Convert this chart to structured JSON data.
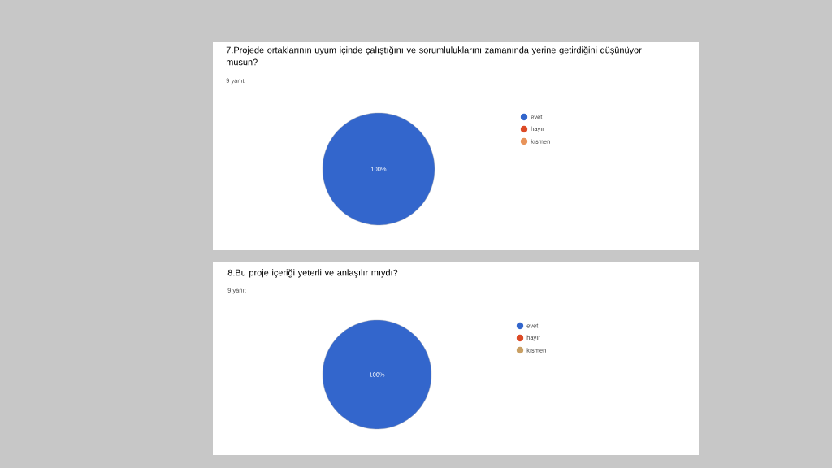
{
  "chart_data": [
    {
      "type": "pie",
      "title": "7.Projede ortaklarının uyum içinde çalıştığını ve sorumluluklarını zamanında yerine getirdiğini düşünüyor musun?",
      "subtitle": "9 yanıt",
      "categories": [
        "evet",
        "hayır",
        "kısmen"
      ],
      "values": [
        100,
        0,
        0
      ],
      "colors": [
        "#3366cc",
        "#dc4a26",
        "#e8935a"
      ],
      "value_labels": [
        "100%",
        null,
        null
      ],
      "legend": "right"
    },
    {
      "type": "pie",
      "title": "8.Bu proje içeriği yeterli ve anlaşılır mıydı?",
      "subtitle": "9 yanıt",
      "categories": [
        "evet",
        "hayır",
        "kısmen"
      ],
      "values": [
        100,
        0,
        0
      ],
      "colors": [
        "#3366cc",
        "#dc4a26",
        "#c9a064"
      ],
      "value_labels": [
        "100%",
        null,
        null
      ],
      "legend": "right"
    }
  ]
}
